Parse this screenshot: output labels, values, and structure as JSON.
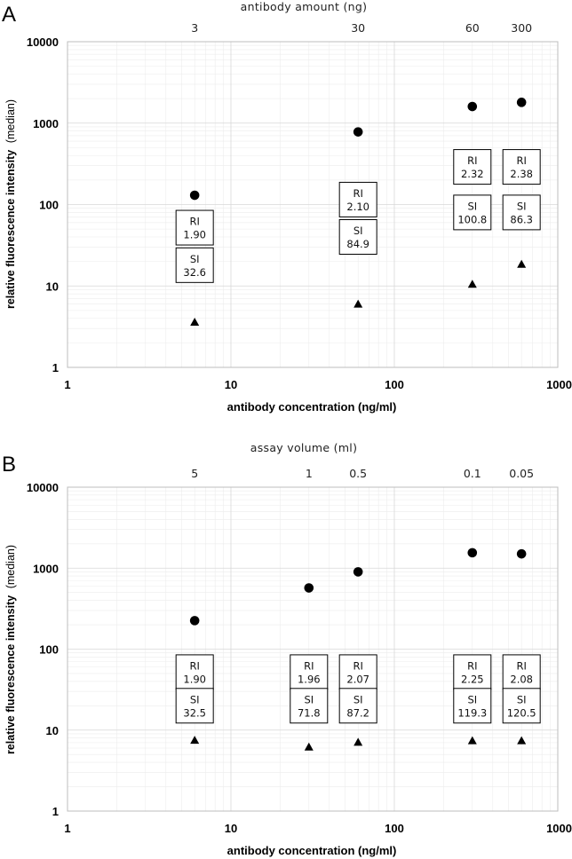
{
  "chart_data": [
    {
      "panel": "A",
      "type": "scatter",
      "xscale": "log",
      "yscale": "log",
      "xlim": [
        1,
        1000
      ],
      "ylim": [
        1,
        10000
      ],
      "xlabel": "antibody concentration (ng/ml)",
      "ylabel": "relative fluorescence intensity",
      "ylabel_note": "(median)",
      "xticks": [
        "1",
        "10",
        "100",
        "1000"
      ],
      "yticks": [
        "1",
        "10",
        "100",
        "1000",
        "10000"
      ],
      "grid": true,
      "top_axis": {
        "label": "antibody amount (ng)",
        "ticks": [
          {
            "x": 6,
            "label": "3"
          },
          {
            "x": 60,
            "label": "30"
          },
          {
            "x": 300,
            "label": "60"
          },
          {
            "x": 600,
            "label": "300"
          }
        ]
      },
      "series": [
        {
          "marker": "circle",
          "points": [
            [
              6,
              130
            ],
            [
              60,
              780
            ],
            [
              300,
              1600
            ],
            [
              600,
              1800
            ]
          ]
        },
        {
          "marker": "triangle",
          "points": [
            [
              6,
              3.6
            ],
            [
              60,
              6
            ],
            [
              300,
              10.5
            ],
            [
              600,
              18.5
            ]
          ]
        }
      ],
      "annotations": [
        {
          "x": 6,
          "ri_label": "RI",
          "ri": "1.90",
          "si_label": "SI",
          "si": "32.6",
          "ri_y": 52,
          "si_y": 18
        },
        {
          "x": 60,
          "ri_label": "RI",
          "ri": "2.10",
          "si_label": "SI",
          "si": "84.9",
          "ri_y": 115,
          "si_y": 40
        },
        {
          "x": 300,
          "ri_label": "RI",
          "ri": "2.32",
          "si_label": "SI",
          "si": "100.8",
          "ri_y": 290,
          "si_y": 80
        },
        {
          "x": 600,
          "ri_label": "RI",
          "ri": "2.38",
          "si_label": "SI",
          "si": "86.3",
          "ri_y": 290,
          "si_y": 80
        }
      ]
    },
    {
      "panel": "B",
      "type": "scatter",
      "xscale": "log",
      "yscale": "log",
      "xlim": [
        1,
        1000
      ],
      "ylim": [
        1,
        10000
      ],
      "xlabel": "antibody concentration (ng/ml)",
      "ylabel": "relative fluorescence intensity",
      "ylabel_note": "(median)",
      "xticks": [
        "1",
        "10",
        "100",
        "1000"
      ],
      "yticks": [
        "1",
        "10",
        "100",
        "1000",
        "10000"
      ],
      "grid": true,
      "top_axis": {
        "label": "assay volume (ml)",
        "ticks": [
          {
            "x": 6,
            "label": "5"
          },
          {
            "x": 30,
            "label": "1"
          },
          {
            "x": 60,
            "label": "0.5"
          },
          {
            "x": 300,
            "label": "0.1"
          },
          {
            "x": 600,
            "label": "0.05"
          }
        ]
      },
      "series": [
        {
          "marker": "circle",
          "points": [
            [
              6,
              225
            ],
            [
              30,
              570
            ],
            [
              60,
              900
            ],
            [
              300,
              1550
            ],
            [
              600,
              1500
            ]
          ]
        },
        {
          "marker": "triangle",
          "points": [
            [
              6,
              7.5
            ],
            [
              30,
              6.2
            ],
            [
              60,
              7.1
            ],
            [
              300,
              7.4
            ],
            [
              600,
              7.4
            ]
          ]
        }
      ],
      "annotations": [
        {
          "x": 6,
          "ri_label": "RI",
          "ri": "1.90",
          "si_label": "SI",
          "si": "32.5",
          "ri_y": 52,
          "si_y": 20
        },
        {
          "x": 30,
          "ri_label": "RI",
          "ri": "1.96",
          "si_label": "SI",
          "si": "71.8",
          "ri_y": 52,
          "si_y": 20
        },
        {
          "x": 60,
          "ri_label": "RI",
          "ri": "2.07",
          "si_label": "SI",
          "si": "87.2",
          "ri_y": 52,
          "si_y": 20
        },
        {
          "x": 300,
          "ri_label": "RI",
          "ri": "2.25",
          "si_label": "SI",
          "si": "119.3",
          "ri_y": 52,
          "si_y": 20
        },
        {
          "x": 600,
          "ri_label": "RI",
          "ri": "2.08",
          "si_label": "SI",
          "si": "120.5",
          "ri_y": 52,
          "si_y": 20
        }
      ]
    }
  ]
}
